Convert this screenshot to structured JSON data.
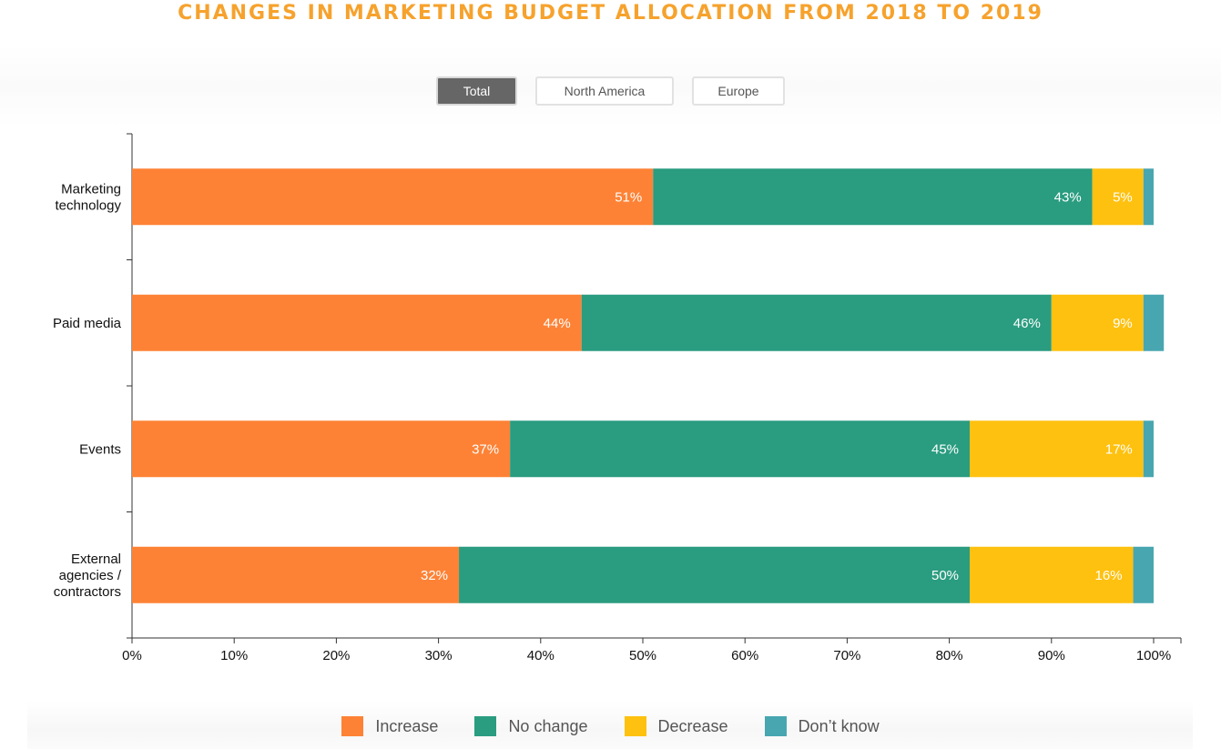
{
  "title": "CHANGES IN MARKETING BUDGET ALLOCATION FROM 2018 TO 2019",
  "filters": {
    "total": "Total",
    "north_america": "North America",
    "europe": "Europe",
    "selected": "Total"
  },
  "colors": {
    "increase": "#fe8235",
    "no_change": "#2a9c80",
    "decrease": "#fec10f",
    "dont_know": "#48a6b0",
    "title": "#f6a22d"
  },
  "chart_data": {
    "type": "bar",
    "orientation": "horizontal",
    "stacked": true,
    "categories": [
      [
        "Marketing",
        "technology"
      ],
      [
        "Paid media"
      ],
      [
        "Events"
      ],
      [
        "External",
        "agencies /",
        "contractors"
      ]
    ],
    "series": [
      {
        "name": "Increase",
        "values": [
          51,
          44,
          37,
          32
        ],
        "labels": [
          "51%",
          "44%",
          "37%",
          "32%"
        ]
      },
      {
        "name": "No change",
        "values": [
          43,
          46,
          45,
          50
        ],
        "labels": [
          "43%",
          "46%",
          "45%",
          "50%"
        ]
      },
      {
        "name": "Decrease",
        "values": [
          5,
          9,
          17,
          16
        ],
        "labels": [
          "5%",
          "9%",
          "17%",
          "16%"
        ]
      },
      {
        "name": "Don’t know",
        "values": [
          1,
          2,
          1,
          2
        ],
        "labels": [
          "",
          "",
          "",
          ""
        ]
      }
    ],
    "xlim": [
      0,
      100
    ],
    "xticks": [
      "0%",
      "10%",
      "20%",
      "30%",
      "40%",
      "50%",
      "60%",
      "70%",
      "80%",
      "90%",
      "100%"
    ],
    "grid": false,
    "legend_position": "bottom"
  }
}
